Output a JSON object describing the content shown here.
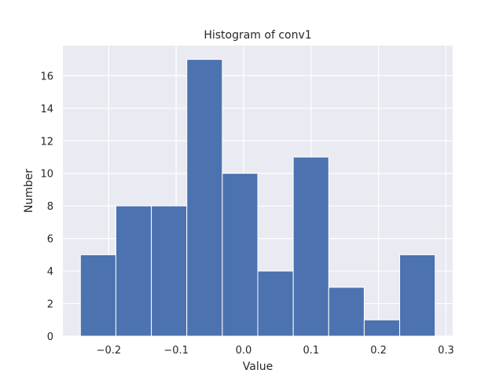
{
  "chart_data": {
    "type": "bar",
    "title": "Histogram of conv1",
    "xlabel": "Value",
    "ylabel": "Number",
    "bin_edges": [
      -0.242,
      -0.1894,
      -0.1368,
      -0.0842,
      -0.0316,
      0.021,
      0.0736,
      0.1262,
      0.1788,
      0.2314,
      0.284
    ],
    "values": [
      5,
      8,
      8,
      17,
      10,
      4,
      11,
      3,
      1,
      5
    ],
    "xlim": [
      -0.268,
      0.31
    ],
    "ylim": [
      0,
      17.85
    ],
    "xticks": [
      -0.2,
      -0.1,
      0.0,
      0.1,
      0.2,
      0.3
    ],
    "xtick_labels": [
      "−0.2",
      "−0.1",
      "0.0",
      "0.1",
      "0.2",
      "0.3"
    ],
    "yticks": [
      0,
      2,
      4,
      6,
      8,
      10,
      12,
      14,
      16
    ],
    "ytick_labels": [
      "0",
      "2",
      "4",
      "6",
      "8",
      "10",
      "12",
      "14",
      "16"
    ],
    "grid": true,
    "colors": {
      "bar": "#4c72b0",
      "background": "#eaeaf2",
      "grid": "#ffffff"
    }
  }
}
